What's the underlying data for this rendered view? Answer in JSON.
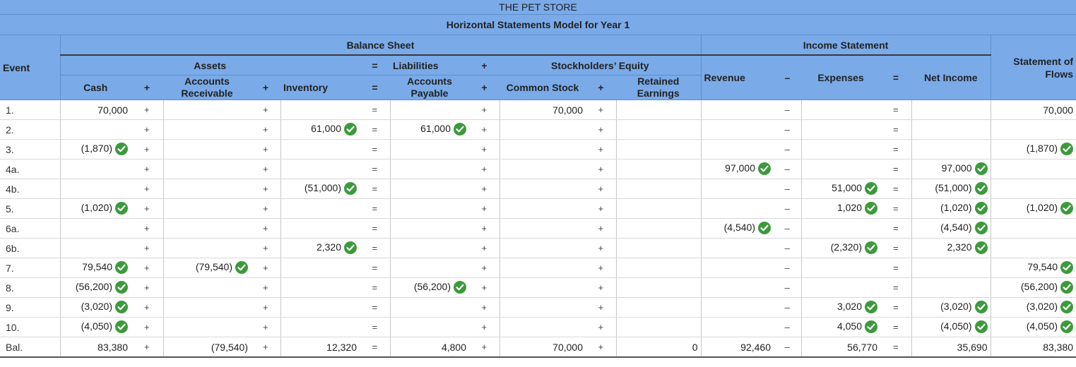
{
  "title": "THE PET STORE",
  "subtitle": "Horizontal Statements Model for Year 1",
  "headers": {
    "event": "Event",
    "balance_sheet": "Balance Sheet",
    "income_statement": "Income Statement",
    "assets": "Assets",
    "liabilities": "Liabilities",
    "stockholders_equity": "Stockholders’ Equity",
    "cash": "Cash",
    "accounts_receivable": "Accounts Receivable",
    "inventory": "Inventory",
    "accounts_payable": "Accounts Payable",
    "common_stock": "Common Stock",
    "retained_earnings": "Retained Earnings",
    "revenue": "Revenue",
    "expenses": "Expenses",
    "net_income": "Net Income",
    "statement_of_cash_flows_line1": "Statement of",
    "statement_of_cash_flows_line2": "Flows",
    "plus": "+",
    "equals": "=",
    "minus": "–"
  },
  "rows": [
    {
      "event": "1.",
      "cash": "70,000",
      "cash_chk": false,
      "ar": "",
      "ar_chk": false,
      "inv": "",
      "inv_chk": false,
      "ap": "",
      "ap_chk": false,
      "cs": "70,000",
      "re": "",
      "rev": "",
      "rev_chk": false,
      "exp": "",
      "exp_chk": false,
      "ni": "",
      "ni_chk": false,
      "scf": "70,000",
      "scf_chk": false
    },
    {
      "event": "2.",
      "cash": "",
      "cash_chk": false,
      "ar": "",
      "ar_chk": false,
      "inv": "61,000",
      "inv_chk": true,
      "ap": "61,000",
      "ap_chk": true,
      "cs": "",
      "re": "",
      "rev": "",
      "rev_chk": false,
      "exp": "",
      "exp_chk": false,
      "ni": "",
      "ni_chk": false,
      "scf": "",
      "scf_chk": false
    },
    {
      "event": "3.",
      "cash": "(1,870)",
      "cash_chk": true,
      "ar": "",
      "ar_chk": false,
      "inv": "",
      "inv_chk": false,
      "ap": "",
      "ap_chk": false,
      "cs": "",
      "re": "",
      "rev": "",
      "rev_chk": false,
      "exp": "",
      "exp_chk": false,
      "ni": "",
      "ni_chk": false,
      "scf": "(1,870)",
      "scf_chk": true
    },
    {
      "event": "4a.",
      "cash": "",
      "cash_chk": false,
      "ar": "",
      "ar_chk": false,
      "inv": "",
      "inv_chk": false,
      "ap": "",
      "ap_chk": false,
      "cs": "",
      "re": "",
      "rev": "97,000",
      "rev_chk": true,
      "exp": "",
      "exp_chk": false,
      "ni": "97,000",
      "ni_chk": true,
      "scf": "",
      "scf_chk": false
    },
    {
      "event": "4b.",
      "cash": "",
      "cash_chk": false,
      "ar": "",
      "ar_chk": false,
      "inv": "(51,000)",
      "inv_chk": true,
      "ap": "",
      "ap_chk": false,
      "cs": "",
      "re": "",
      "rev": "",
      "rev_chk": false,
      "exp": "51,000",
      "exp_chk": true,
      "ni": "(51,000)",
      "ni_chk": true,
      "scf": "",
      "scf_chk": false
    },
    {
      "event": "5.",
      "cash": "(1,020)",
      "cash_chk": true,
      "ar": "",
      "ar_chk": false,
      "inv": "",
      "inv_chk": false,
      "ap": "",
      "ap_chk": false,
      "cs": "",
      "re": "",
      "rev": "",
      "rev_chk": false,
      "exp": "1,020",
      "exp_chk": true,
      "ni": "(1,020)",
      "ni_chk": true,
      "scf": "(1,020)",
      "scf_chk": true
    },
    {
      "event": "6a.",
      "cash": "",
      "cash_chk": false,
      "ar": "",
      "ar_chk": false,
      "inv": "",
      "inv_chk": false,
      "ap": "",
      "ap_chk": false,
      "cs": "",
      "re": "",
      "rev": "(4,540)",
      "rev_chk": true,
      "exp": "",
      "exp_chk": false,
      "ni": "(4,540)",
      "ni_chk": true,
      "scf": "",
      "scf_chk": false
    },
    {
      "event": "6b.",
      "cash": "",
      "cash_chk": false,
      "ar": "",
      "ar_chk": false,
      "inv": "2,320",
      "inv_chk": true,
      "ap": "",
      "ap_chk": false,
      "cs": "",
      "re": "",
      "rev": "",
      "rev_chk": false,
      "exp": "(2,320)",
      "exp_chk": true,
      "ni": "2,320",
      "ni_chk": true,
      "scf": "",
      "scf_chk": false
    },
    {
      "event": "7.",
      "cash": "79,540",
      "cash_chk": true,
      "ar": "(79,540)",
      "ar_chk": true,
      "inv": "",
      "inv_chk": false,
      "ap": "",
      "ap_chk": false,
      "cs": "",
      "re": "",
      "rev": "",
      "rev_chk": false,
      "exp": "",
      "exp_chk": false,
      "ni": "",
      "ni_chk": false,
      "scf": "79,540",
      "scf_chk": true
    },
    {
      "event": "8.",
      "cash": "(56,200)",
      "cash_chk": true,
      "ar": "",
      "ar_chk": false,
      "inv": "",
      "inv_chk": false,
      "ap": "(56,200)",
      "ap_chk": true,
      "cs": "",
      "re": "",
      "rev": "",
      "rev_chk": false,
      "exp": "",
      "exp_chk": false,
      "ni": "",
      "ni_chk": false,
      "scf": "(56,200)",
      "scf_chk": true
    },
    {
      "event": "9.",
      "cash": "(3,020)",
      "cash_chk": true,
      "ar": "",
      "ar_chk": false,
      "inv": "",
      "inv_chk": false,
      "ap": "",
      "ap_chk": false,
      "cs": "",
      "re": "",
      "rev": "",
      "rev_chk": false,
      "exp": "3,020",
      "exp_chk": true,
      "ni": "(3,020)",
      "ni_chk": true,
      "scf": "(3,020)",
      "scf_chk": true
    },
    {
      "event": "10.",
      "cash": "(4,050)",
      "cash_chk": true,
      "ar": "",
      "ar_chk": false,
      "inv": "",
      "inv_chk": false,
      "ap": "",
      "ap_chk": false,
      "cs": "",
      "re": "",
      "rev": "",
      "rev_chk": false,
      "exp": "4,050",
      "exp_chk": true,
      "ni": "(4,050)",
      "ni_chk": true,
      "scf": "(4,050)",
      "scf_chk": true
    }
  ],
  "balance": {
    "event": "Bal.",
    "cash": "83,380",
    "ar": "(79,540)",
    "inv": "12,320",
    "ap": "4,800",
    "cs": "70,000",
    "re": "0",
    "rev": "92,460",
    "exp": "56,770",
    "ni": "35,690",
    "scf": "83,380"
  },
  "colors": {
    "header_bg": "#7aaae8",
    "check": "#3c9a3c"
  }
}
